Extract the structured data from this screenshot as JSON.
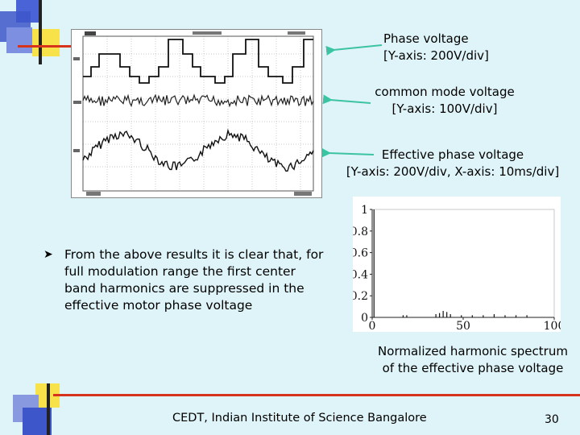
{
  "annotations": {
    "phase_voltage": [
      "Phase voltage",
      "[Y-axis: 200V/div]"
    ],
    "common_mode": [
      "common mode voltage",
      "[Y-axis: 100V/div]"
    ],
    "effective_phase": [
      "Effective phase voltage",
      "[Y-axis: 200V/div, X-axis: 10ms/div]"
    ]
  },
  "bullet": {
    "text": "From the above results it is clear that, for full modulation range the first center band harmonics are suppressed in the effective motor phase voltage"
  },
  "spectrum": {
    "caption": [
      "Normalized harmonic spectrum",
      "of the effective phase voltage"
    ],
    "chart_data": {
      "type": "bar",
      "x_ticks": [
        "0",
        "50",
        "100"
      ],
      "y_ticks": [
        "1",
        "0.8",
        "0.6",
        "0.4",
        "0.2",
        "0"
      ],
      "xlim": [
        0,
        100
      ],
      "ylim": [
        0,
        1
      ],
      "x": [
        1,
        17,
        19,
        35,
        37,
        39,
        41,
        43,
        49,
        55,
        61,
        67,
        73,
        79,
        85
      ],
      "values": [
        1.0,
        0.02,
        0.02,
        0.03,
        0.04,
        0.06,
        0.05,
        0.03,
        0.02,
        0.02,
        0.02,
        0.03,
        0.02,
        0.02,
        0.02
      ]
    }
  },
  "footer": {
    "institution": "CEDT, Indian Institute of Science Bangalore",
    "page_number": "30"
  },
  "colors": {
    "background": "#dff4f8",
    "accent_red": "#d6321c",
    "accent_yellow": "#f8e24a",
    "accent_blue": "#3d56c9",
    "arrow_teal": "#3cc3a2"
  }
}
